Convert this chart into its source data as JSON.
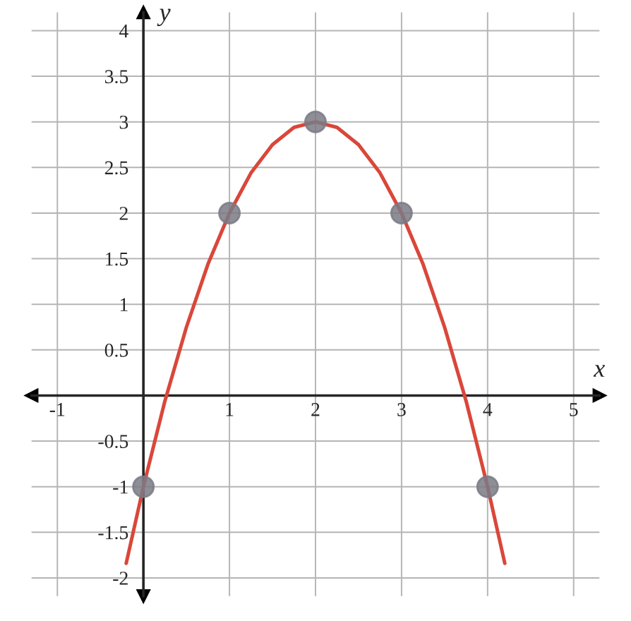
{
  "chart_data": {
    "type": "line",
    "xlabel": "x",
    "ylabel": "y",
    "xlim": [
      -1.3,
      5.3
    ],
    "ylim": [
      -2.2,
      4.2
    ],
    "xticks": [
      -1,
      1,
      2,
      3,
      4,
      5
    ],
    "yticks": [
      -2,
      -1.5,
      -1,
      -0.5,
      0.5,
      1,
      1.5,
      2,
      2.5,
      3,
      3.5,
      4
    ],
    "grid": true,
    "series": [
      {
        "color": "#d9473a",
        "marker": "none",
        "x": [
          -0.2,
          0,
          0.25,
          0.5,
          0.75,
          1,
          1.25,
          1.5,
          1.75,
          2,
          2.25,
          2.5,
          2.75,
          3,
          3.25,
          3.5,
          3.75,
          4,
          4.2
        ],
        "values": [
          -1.84,
          -1,
          -0.06,
          0.75,
          1.44,
          2,
          2.44,
          2.75,
          2.94,
          3,
          2.94,
          2.75,
          2.44,
          2,
          1.44,
          0.75,
          -0.06,
          -1,
          -1.84
        ]
      },
      {
        "type": "scatter",
        "color": "#7a7a85",
        "marker": "circle",
        "x": [
          0,
          1,
          2,
          3,
          4
        ],
        "values": [
          -1,
          2,
          3,
          2,
          -1
        ]
      }
    ]
  }
}
